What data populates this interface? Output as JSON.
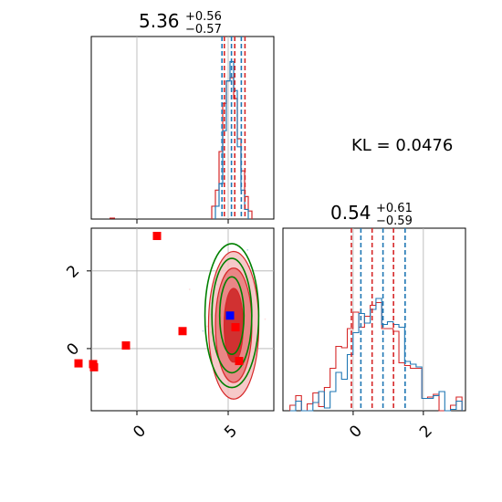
{
  "chart_data": {
    "type": "corner",
    "parameters": [
      {
        "title_value": "5.36",
        "title_plus": "+0.56",
        "title_minus": "−0.57",
        "xlim": [
          -2.5,
          7.5
        ],
        "ticks": [
          0,
          5
        ],
        "tick_labels": [
          "0",
          "5"
        ]
      },
      {
        "title_value": "0.54",
        "title_plus": "+0.61",
        "title_minus": "−0.59",
        "xlim": [
          -2.0,
          3.2
        ],
        "ticks": [
          0,
          2
        ],
        "tick_labels": [
          "0",
          "2"
        ]
      }
    ],
    "joint": {
      "xlim": [
        -2.5,
        7.5
      ],
      "ylim": [
        -1.6,
        3.1
      ],
      "xticks": [
        0,
        5
      ],
      "yticks": [
        0,
        2
      ],
      "ytick_labels": [
        "0",
        "2"
      ]
    },
    "kl_text": "KL = 0.0476",
    "grid": true,
    "colors": {
      "red": "#d62728",
      "blue": "#1f77b4",
      "green": "#008000",
      "marker_blue": "#0000ff",
      "marker_red": "#ff0000"
    },
    "series": [
      {
        "color": "red",
        "hist1_x": [
          4.2,
          4.4,
          4.6,
          4.8,
          5.0,
          5.2,
          5.4,
          5.6,
          5.8,
          6.0,
          6.2
        ],
        "hist1_counts": [
          0.08,
          0.18,
          0.42,
          0.72,
          0.86,
          0.88,
          0.75,
          0.5,
          0.3,
          0.14,
          0.05
        ],
        "hist1_quantiles": [
          4.79,
          5.36,
          5.92
        ],
        "hist2_quantiles": [
          -0.05,
          0.54,
          1.15
        ],
        "hist2_counts": [
          0.01,
          0.02,
          0.03,
          0.05,
          0.07,
          0.12,
          0.2,
          0.28,
          0.38,
          0.52,
          0.6,
          0.66,
          0.7,
          0.72,
          0.74,
          0.7,
          0.66,
          0.6,
          0.52,
          0.44,
          0.36,
          0.28,
          0.22,
          0.15,
          0.1,
          0.06,
          0.04,
          0.02,
          0.01,
          0.01
        ]
      },
      {
        "color": "blue",
        "hist1_x": [
          4.4,
          4.6,
          4.8,
          5.0,
          5.2,
          5.4,
          5.6,
          5.8,
          6.0
        ],
        "hist1_counts": [
          0.08,
          0.22,
          0.55,
          0.86,
          0.98,
          0.8,
          0.45,
          0.18,
          0.06
        ],
        "hist1_quantiles": [
          4.66,
          5.18,
          5.72
        ],
        "hist2_quantiles": [
          0.22,
          0.85,
          1.48
        ],
        "hist2_counts": [
          0.0,
          0.01,
          0.01,
          0.02,
          0.03,
          0.05,
          0.08,
          0.14,
          0.22,
          0.32,
          0.44,
          0.54,
          0.62,
          0.7,
          0.74,
          0.76,
          0.72,
          0.68,
          0.6,
          0.52,
          0.42,
          0.34,
          0.26,
          0.18,
          0.12,
          0.08,
          0.05,
          0.03,
          0.01,
          0.01
        ]
      }
    ],
    "red_markers": [
      {
        "x": -3.2,
        "y": -0.38
      },
      {
        "x": -2.4,
        "y": -0.4
      },
      {
        "x": -2.35,
        "y": -0.48
      },
      {
        "x": -0.6,
        "y": 0.08
      },
      {
        "x": 1.1,
        "y": 2.9
      },
      {
        "x": 2.5,
        "y": 0.45
      },
      {
        "x": 5.4,
        "y": 0.55
      },
      {
        "x": 5.6,
        "y": -0.32
      }
    ],
    "blue_marker": {
      "x": 5.1,
      "y": 0.85
    },
    "contours": {
      "red_center": [
        5.3,
        0.6
      ],
      "red_radii": [
        [
          0.55,
          1.0
        ],
        [
          1.05,
          1.55
        ],
        [
          1.45,
          2.0
        ]
      ],
      "green_center": [
        5.2,
        0.85
      ],
      "green_radii": [
        [
          0.7,
          1.05
        ],
        [
          1.15,
          1.55
        ],
        [
          1.55,
          1.95
        ]
      ]
    }
  }
}
